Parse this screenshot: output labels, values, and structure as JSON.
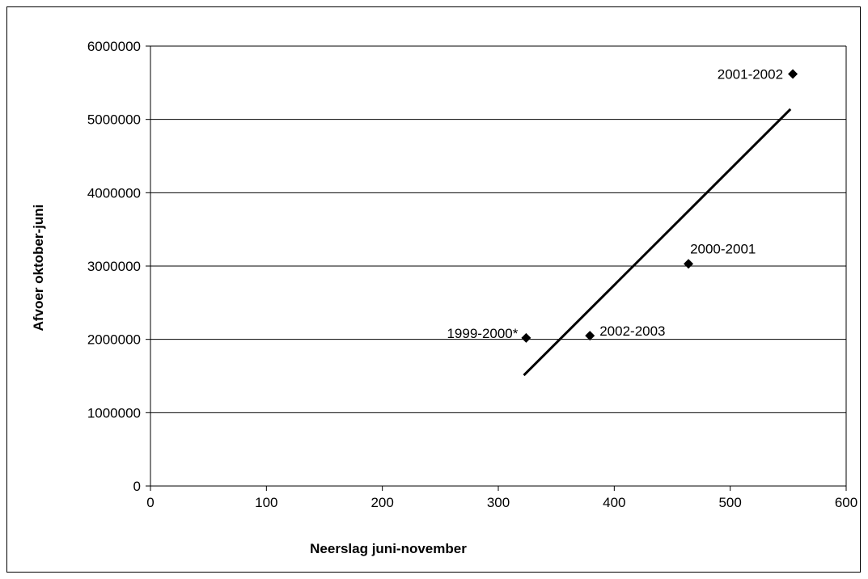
{
  "chart_data": {
    "type": "scatter",
    "title": "",
    "xlabel": "Neerslag juni-november",
    "ylabel": "Afvoer oktober-juni",
    "xlim": [
      0,
      600
    ],
    "ylim": [
      0,
      6000000
    ],
    "x_ticks": [
      "0",
      "100",
      "200",
      "300",
      "400",
      "500",
      "600"
    ],
    "y_ticks": [
      "0",
      "1000000",
      "2000000",
      "3000000",
      "4000000",
      "5000000",
      "6000000"
    ],
    "grid": "horizontal",
    "points": [
      {
        "x": 324,
        "y": 2020000,
        "label": "1999-2000*"
      },
      {
        "x": 379,
        "y": 2050000,
        "label": "2002-2003"
      },
      {
        "x": 464,
        "y": 3030000,
        "label": "2000-2001"
      },
      {
        "x": 554,
        "y": 5620000,
        "label": "2001-2002"
      }
    ],
    "trendline": {
      "x": [
        322,
        552
      ],
      "y": [
        1510000,
        5140000
      ]
    },
    "colors": {
      "marker": "#000000",
      "line": "#000000",
      "grid": "#000000"
    }
  }
}
